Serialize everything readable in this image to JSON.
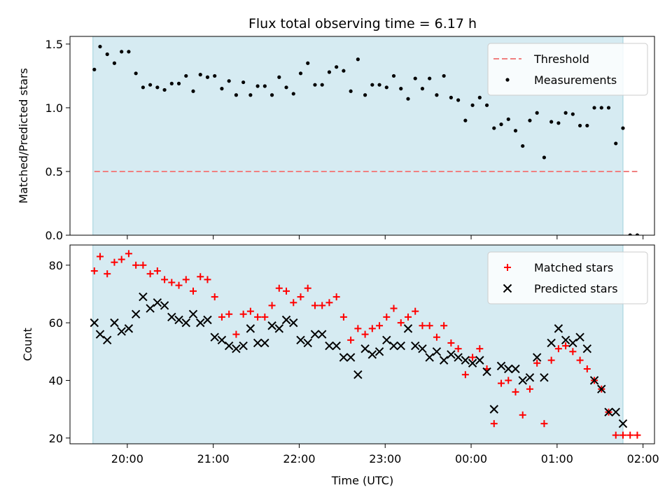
{
  "chart_data": [
    {
      "type": "scatter",
      "title": "Flux total observing time = 6.17 h",
      "xlabel": "",
      "ylabel": "Matched/Predicted stars",
      "ylim": [
        0,
        1.56
      ],
      "yticks": [
        "0.0",
        "0.5",
        "1.0",
        "1.5"
      ],
      "legend_position": "top-right",
      "observing_window": {
        "start": "19:36",
        "end": "01:46"
      },
      "threshold": {
        "name": "Threshold",
        "value": 0.5,
        "color": "#f08080"
      },
      "series": [
        {
          "name": "Measurements",
          "marker": "dot",
          "color": "#000000",
          "x": [
            "19:37",
            "19:41",
            "19:46",
            "19:51",
            "19:56",
            "20:01",
            "20:06",
            "20:11",
            "20:16",
            "20:21",
            "20:26",
            "20:31",
            "20:36",
            "20:41",
            "20:46",
            "20:51",
            "20:56",
            "21:01",
            "21:06",
            "21:11",
            "21:16",
            "21:21",
            "21:26",
            "21:31",
            "21:36",
            "21:41",
            "21:46",
            "21:51",
            "21:56",
            "22:01",
            "22:06",
            "22:11",
            "22:16",
            "22:21",
            "22:26",
            "22:31",
            "22:36",
            "22:41",
            "22:46",
            "22:51",
            "22:56",
            "23:01",
            "23:06",
            "23:11",
            "23:16",
            "23:21",
            "23:26",
            "23:31",
            "23:36",
            "23:41",
            "23:46",
            "23:51",
            "23:56",
            "00:01",
            "00:06",
            "00:11",
            "00:16",
            "00:21",
            "00:26",
            "00:31",
            "00:36",
            "00:41",
            "00:46",
            "00:51",
            "00:56",
            "01:01",
            "01:06",
            "01:11",
            "01:16",
            "01:21",
            "01:26",
            "01:31",
            "01:36",
            "01:41",
            "01:46",
            "01:51",
            "01:56"
          ],
          "y": [
            1.3,
            1.48,
            1.42,
            1.35,
            1.44,
            1.44,
            1.27,
            1.16,
            1.18,
            1.16,
            1.14,
            1.19,
            1.19,
            1.25,
            1.13,
            1.26,
            1.24,
            1.25,
            1.15,
            1.21,
            1.1,
            1.2,
            1.1,
            1.17,
            1.17,
            1.1,
            1.24,
            1.16,
            1.11,
            1.27,
            1.35,
            1.18,
            1.18,
            1.28,
            1.32,
            1.29,
            1.13,
            1.38,
            1.1,
            1.18,
            1.18,
            1.16,
            1.25,
            1.15,
            1.07,
            1.23,
            1.15,
            1.23,
            1.1,
            1.25,
            1.08,
            1.06,
            0.9,
            1.02,
            1.08,
            1.02,
            0.84,
            0.87,
            0.91,
            0.82,
            0.7,
            0.9,
            0.96,
            0.61,
            0.89,
            0.88,
            0.96,
            0.95,
            0.86,
            0.86,
            1.0,
            1.0,
            1.0,
            0.72,
            0.84,
            0.0,
            0.0
          ]
        }
      ]
    },
    {
      "type": "scatter",
      "title": "",
      "xlabel": "Time (UTC)",
      "ylabel": "Count",
      "ylim": [
        18,
        87
      ],
      "yticks": [
        "20",
        "40",
        "60",
        "80"
      ],
      "xticks": [
        "20:00",
        "21:00",
        "22:00",
        "23:00",
        "00:00",
        "01:00",
        "02:00"
      ],
      "legend_position": "top-right",
      "observing_window": {
        "start": "19:36",
        "end": "01:46"
      },
      "series": [
        {
          "name": "Matched stars",
          "marker": "plus",
          "color": "#ff0000",
          "x": [
            "19:37",
            "19:41",
            "19:46",
            "19:51",
            "19:56",
            "20:01",
            "20:06",
            "20:11",
            "20:16",
            "20:21",
            "20:26",
            "20:31",
            "20:36",
            "20:41",
            "20:46",
            "20:51",
            "20:56",
            "21:01",
            "21:06",
            "21:11",
            "21:16",
            "21:21",
            "21:26",
            "21:31",
            "21:36",
            "21:41",
            "21:46",
            "21:51",
            "21:56",
            "22:01",
            "22:06",
            "22:11",
            "22:16",
            "22:21",
            "22:26",
            "22:31",
            "22:36",
            "22:41",
            "22:46",
            "22:51",
            "22:56",
            "23:01",
            "23:06",
            "23:11",
            "23:16",
            "23:21",
            "23:26",
            "23:31",
            "23:36",
            "23:41",
            "23:46",
            "23:51",
            "23:56",
            "00:01",
            "00:06",
            "00:11",
            "00:16",
            "00:21",
            "00:26",
            "00:31",
            "00:36",
            "00:41",
            "00:46",
            "00:51",
            "00:56",
            "01:01",
            "01:06",
            "01:11",
            "01:16",
            "01:21",
            "01:26",
            "01:31",
            "01:36",
            "01:41",
            "01:46",
            "01:51",
            "01:56"
          ],
          "y": [
            78,
            83,
            77,
            81,
            82,
            84,
            80,
            80,
            77,
            78,
            75,
            74,
            73,
            75,
            71,
            76,
            75,
            69,
            62,
            63,
            56,
            63,
            64,
            62,
            62,
            66,
            72,
            71,
            67,
            69,
            72,
            66,
            66,
            67,
            69,
            62,
            54,
            58,
            56,
            58,
            59,
            62,
            65,
            60,
            62,
            64,
            59,
            59,
            55,
            59,
            53,
            51,
            42,
            48,
            51,
            44,
            25,
            39,
            40,
            36,
            28,
            37,
            46,
            25,
            47,
            51,
            52,
            50,
            47,
            44,
            40,
            37,
            29,
            21,
            21,
            21,
            21
          ]
        },
        {
          "name": "Predicted stars",
          "marker": "x",
          "color": "#000000",
          "x": [
            "19:37",
            "19:41",
            "19:46",
            "19:51",
            "19:56",
            "20:01",
            "20:06",
            "20:11",
            "20:16",
            "20:21",
            "20:26",
            "20:31",
            "20:36",
            "20:41",
            "20:46",
            "20:51",
            "20:56",
            "21:01",
            "21:06",
            "21:11",
            "21:16",
            "21:21",
            "21:26",
            "21:31",
            "21:36",
            "21:41",
            "21:46",
            "21:51",
            "21:56",
            "22:01",
            "22:06",
            "22:11",
            "22:16",
            "22:21",
            "22:26",
            "22:31",
            "22:36",
            "22:41",
            "22:46",
            "22:51",
            "22:56",
            "23:01",
            "23:06",
            "23:11",
            "23:16",
            "23:21",
            "23:26",
            "23:31",
            "23:36",
            "23:41",
            "23:46",
            "23:51",
            "23:56",
            "00:01",
            "00:06",
            "00:11",
            "00:16",
            "00:21",
            "00:26",
            "00:31",
            "00:36",
            "00:41",
            "00:46",
            "00:51",
            "00:56",
            "01:01",
            "01:06",
            "01:11",
            "01:16",
            "01:21",
            "01:26",
            "01:31",
            "01:36",
            "01:41",
            "01:46"
          ],
          "y": [
            60,
            56,
            54,
            60,
            57,
            58,
            63,
            69,
            65,
            67,
            66,
            62,
            61,
            60,
            63,
            60,
            61,
            55,
            54,
            52,
            51,
            52,
            58,
            53,
            53,
            59,
            58,
            61,
            60,
            54,
            53,
            56,
            56,
            52,
            52,
            48,
            48,
            42,
            51,
            49,
            50,
            54,
            52,
            52,
            58,
            52,
            51,
            48,
            50,
            47,
            49,
            48,
            47,
            46,
            47,
            43,
            30,
            45,
            44,
            44,
            40,
            41,
            48,
            41,
            53,
            58,
            54,
            53,
            55,
            51,
            40,
            37,
            29,
            29,
            25
          ]
        }
      ]
    }
  ]
}
